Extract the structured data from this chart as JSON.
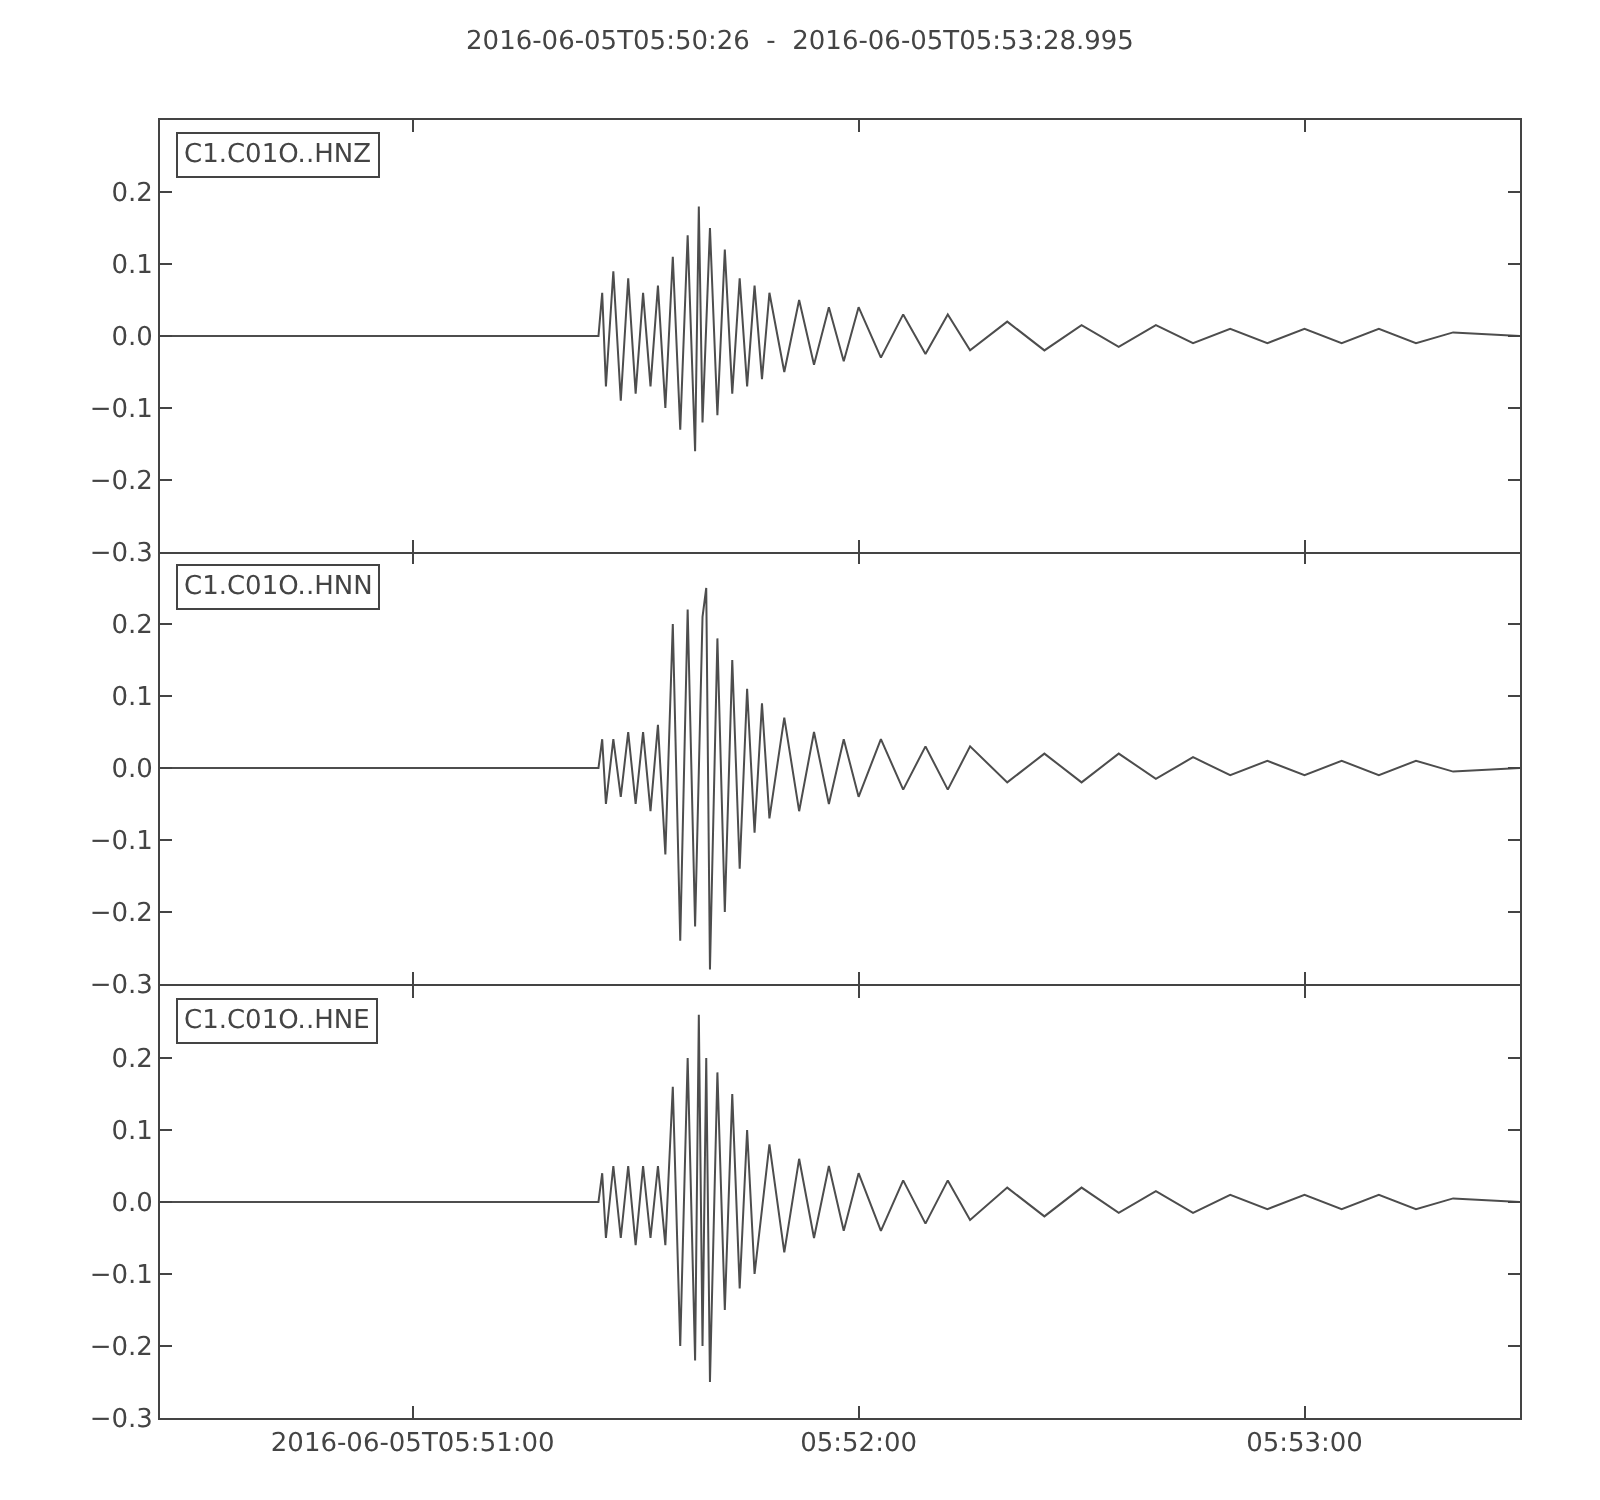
{
  "chart_data": [
    {
      "type": "line",
      "title": "2016-06-05T05:50:26  -  2016-06-05T05:53:28.995",
      "annotations": [
        "C1.C01O..HNZ"
      ],
      "grid": false,
      "marker": "none",
      "tick_labels": "y",
      "xlim": [
        "2016-06-05T05:50:26",
        "2016-06-05T05:53:28.995"
      ],
      "xticks": [
        {
          "value": "2016-06-05T05:51:00",
          "label": null
        },
        {
          "value": "2016-06-05T05:52:00",
          "label": null
        },
        {
          "value": "2016-06-05T05:53:00",
          "label": null
        }
      ],
      "ylim": [
        -0.3,
        0.3
      ],
      "yticks": [
        {
          "value": -0.3,
          "label": "−0.3"
        },
        {
          "value": -0.2,
          "label": "−0.2"
        },
        {
          "value": -0.1,
          "label": "−0.1"
        },
        {
          "value": 0,
          "label": "0.0"
        },
        {
          "value": 0.1,
          "label": "0.1"
        },
        {
          "value": 0.2,
          "label": "0.2"
        }
      ],
      "series": [
        {
          "color": "#4d4d4d",
          "x": [
            "2016-06-05T05:50:26",
            "2016-06-05T05:51:25",
            "2016-06-05T05:51:25.5",
            "2016-06-05T05:51:26",
            "2016-06-05T05:51:27",
            "2016-06-05T05:51:28",
            "2016-06-05T05:51:29",
            "2016-06-05T05:51:30",
            "2016-06-05T05:51:31",
            "2016-06-05T05:51:32",
            "2016-06-05T05:51:33",
            "2016-06-05T05:51:34",
            "2016-06-05T05:51:35",
            "2016-06-05T05:51:36",
            "2016-06-05T05:51:37",
            "2016-06-05T05:51:38",
            "2016-06-05T05:51:38.5",
            "2016-06-05T05:51:39",
            "2016-06-05T05:51:40",
            "2016-06-05T05:51:41",
            "2016-06-05T05:51:42",
            "2016-06-05T05:51:43",
            "2016-06-05T05:51:44",
            "2016-06-05T05:51:45",
            "2016-06-05T05:51:46",
            "2016-06-05T05:51:47",
            "2016-06-05T05:51:48",
            "2016-06-05T05:51:50",
            "2016-06-05T05:51:52",
            "2016-06-05T05:51:54",
            "2016-06-05T05:51:56",
            "2016-06-05T05:51:58",
            "2016-06-05T05:52:00",
            "2016-06-05T05:52:03",
            "2016-06-05T05:52:06",
            "2016-06-05T05:52:09",
            "2016-06-05T05:52:12",
            "2016-06-05T05:52:15",
            "2016-06-05T05:52:20",
            "2016-06-05T05:52:25",
            "2016-06-05T05:52:30",
            "2016-06-05T05:52:35",
            "2016-06-05T05:52:40",
            "2016-06-05T05:52:45",
            "2016-06-05T05:52:50",
            "2016-06-05T05:52:55",
            "2016-06-05T05:53:00",
            "2016-06-05T05:53:05",
            "2016-06-05T05:53:10",
            "2016-06-05T05:53:15",
            "2016-06-05T05:53:20",
            "2016-06-05T05:53:28.995"
          ],
          "values": [
            0.0,
            0.0,
            0.06,
            -0.07,
            0.09,
            -0.09,
            0.08,
            -0.08,
            0.06,
            -0.07,
            0.07,
            -0.1,
            0.11,
            -0.13,
            0.14,
            -0.16,
            0.18,
            -0.12,
            0.15,
            -0.11,
            0.12,
            -0.08,
            0.08,
            -0.07,
            0.07,
            -0.06,
            0.06,
            -0.05,
            0.05,
            -0.04,
            0.04,
            -0.035,
            0.04,
            -0.03,
            0.03,
            -0.025,
            0.03,
            -0.02,
            0.02,
            -0.02,
            0.015,
            -0.015,
            0.015,
            -0.01,
            0.01,
            -0.01,
            0.01,
            -0.01,
            0.01,
            -0.01,
            0.005,
            0.0
          ]
        }
      ]
    },
    {
      "type": "line",
      "annotations": [
        "C1.C01O..HNN"
      ],
      "grid": false,
      "marker": "none",
      "tick_labels": "y",
      "xlim": [
        "2016-06-05T05:50:26",
        "2016-06-05T05:53:28.995"
      ],
      "xticks": [
        {
          "value": "2016-06-05T05:51:00",
          "label": null
        },
        {
          "value": "2016-06-05T05:52:00",
          "label": null
        },
        {
          "value": "2016-06-05T05:53:00",
          "label": null
        }
      ],
      "ylim": [
        -0.3,
        0.3
      ],
      "yticks": [
        {
          "value": -0.3,
          "label": "−0.3"
        },
        {
          "value": -0.2,
          "label": "−0.2"
        },
        {
          "value": -0.1,
          "label": "−0.1"
        },
        {
          "value": 0,
          "label": "0.0"
        },
        {
          "value": 0.1,
          "label": "0.1"
        },
        {
          "value": 0.2,
          "label": "0.2"
        }
      ],
      "series": [
        {
          "color": "#4d4d4d",
          "x": [
            "2016-06-05T05:50:26",
            "2016-06-05T05:51:25",
            "2016-06-05T05:51:25.5",
            "2016-06-05T05:51:26",
            "2016-06-05T05:51:27",
            "2016-06-05T05:51:28",
            "2016-06-05T05:51:29",
            "2016-06-05T05:51:30",
            "2016-06-05T05:51:31",
            "2016-06-05T05:51:32",
            "2016-06-05T05:51:33",
            "2016-06-05T05:51:34",
            "2016-06-05T05:51:35",
            "2016-06-05T05:51:36",
            "2016-06-05T05:51:37",
            "2016-06-05T05:51:38",
            "2016-06-05T05:51:39",
            "2016-06-05T05:51:39.5",
            "2016-06-05T05:51:40",
            "2016-06-05T05:51:41",
            "2016-06-05T05:51:42",
            "2016-06-05T05:51:43",
            "2016-06-05T05:51:44",
            "2016-06-05T05:51:45",
            "2016-06-05T05:51:46",
            "2016-06-05T05:51:47",
            "2016-06-05T05:51:48",
            "2016-06-05T05:51:50",
            "2016-06-05T05:51:52",
            "2016-06-05T05:51:54",
            "2016-06-05T05:51:56",
            "2016-06-05T05:51:58",
            "2016-06-05T05:52:00",
            "2016-06-05T05:52:03",
            "2016-06-05T05:52:06",
            "2016-06-05T05:52:09",
            "2016-06-05T05:52:12",
            "2016-06-05T05:52:15",
            "2016-06-05T05:52:20",
            "2016-06-05T05:52:25",
            "2016-06-05T05:52:30",
            "2016-06-05T05:52:35",
            "2016-06-05T05:52:40",
            "2016-06-05T05:52:45",
            "2016-06-05T05:52:50",
            "2016-06-05T05:52:55",
            "2016-06-05T05:53:00",
            "2016-06-05T05:53:05",
            "2016-06-05T05:53:10",
            "2016-06-05T05:53:15",
            "2016-06-05T05:53:20",
            "2016-06-05T05:53:28.995"
          ],
          "values": [
            0.0,
            0.0,
            0.04,
            -0.05,
            0.04,
            -0.04,
            0.05,
            -0.05,
            0.05,
            -0.06,
            0.06,
            -0.12,
            0.2,
            -0.24,
            0.22,
            -0.22,
            0.21,
            0.25,
            -0.28,
            0.18,
            -0.2,
            0.15,
            -0.14,
            0.11,
            -0.09,
            0.09,
            -0.07,
            0.07,
            -0.06,
            0.05,
            -0.05,
            0.04,
            -0.04,
            0.04,
            -0.03,
            0.03,
            -0.03,
            0.03,
            -0.02,
            0.02,
            -0.02,
            0.02,
            -0.015,
            0.015,
            -0.01,
            0.01,
            -0.01,
            0.01,
            -0.01,
            0.01,
            -0.005,
            0.0
          ]
        }
      ]
    },
    {
      "type": "line",
      "annotations": [
        "C1.C01O..HNE"
      ],
      "grid": false,
      "marker": "none",
      "xlim": [
        "2016-06-05T05:50:26",
        "2016-06-05T05:53:28.995"
      ],
      "xticks": [
        {
          "value": "2016-06-05T05:51:00",
          "label": "2016-06-05T05:51:00"
        },
        {
          "value": "2016-06-05T05:52:00",
          "label": "05:52:00"
        },
        {
          "value": "2016-06-05T05:53:00",
          "label": "05:53:00"
        }
      ],
      "ylim": [
        -0.3,
        0.3
      ],
      "yticks": [
        {
          "value": -0.3,
          "label": "−0.3"
        },
        {
          "value": -0.2,
          "label": "−0.2"
        },
        {
          "value": -0.1,
          "label": "−0.1"
        },
        {
          "value": 0,
          "label": "0.0"
        },
        {
          "value": 0.1,
          "label": "0.1"
        },
        {
          "value": 0.2,
          "label": "0.2"
        }
      ],
      "series": [
        {
          "color": "#4d4d4d",
          "x": [
            "2016-06-05T05:50:26",
            "2016-06-05T05:51:25",
            "2016-06-05T05:51:25.5",
            "2016-06-05T05:51:26",
            "2016-06-05T05:51:27",
            "2016-06-05T05:51:28",
            "2016-06-05T05:51:29",
            "2016-06-05T05:51:30",
            "2016-06-05T05:51:31",
            "2016-06-05T05:51:32",
            "2016-06-05T05:51:33",
            "2016-06-05T05:51:34",
            "2016-06-05T05:51:35",
            "2016-06-05T05:51:36",
            "2016-06-05T05:51:37",
            "2016-06-05T05:51:38",
            "2016-06-05T05:51:38.5",
            "2016-06-05T05:51:39",
            "2016-06-05T05:51:39.5",
            "2016-06-05T05:51:40",
            "2016-06-05T05:51:41",
            "2016-06-05T05:51:42",
            "2016-06-05T05:51:43",
            "2016-06-05T05:51:44",
            "2016-06-05T05:51:45",
            "2016-06-05T05:51:46",
            "2016-06-05T05:51:48",
            "2016-06-05T05:51:50",
            "2016-06-05T05:51:52",
            "2016-06-05T05:51:54",
            "2016-06-05T05:51:56",
            "2016-06-05T05:51:58",
            "2016-06-05T05:52:00",
            "2016-06-05T05:52:03",
            "2016-06-05T05:52:06",
            "2016-06-05T05:52:09",
            "2016-06-05T05:52:12",
            "2016-06-05T05:52:15",
            "2016-06-05T05:52:20",
            "2016-06-05T05:52:25",
            "2016-06-05T05:52:30",
            "2016-06-05T05:52:35",
            "2016-06-05T05:52:40",
            "2016-06-05T05:52:45",
            "2016-06-05T05:52:50",
            "2016-06-05T05:52:55",
            "2016-06-05T05:53:00",
            "2016-06-05T05:53:05",
            "2016-06-05T05:53:10",
            "2016-06-05T05:53:15",
            "2016-06-05T05:53:20",
            "2016-06-05T05:53:28.995"
          ],
          "values": [
            0.0,
            0.0,
            0.04,
            -0.05,
            0.05,
            -0.05,
            0.05,
            -0.06,
            0.05,
            -0.05,
            0.05,
            -0.06,
            0.16,
            -0.2,
            0.2,
            -0.22,
            0.26,
            -0.2,
            0.2,
            -0.25,
            0.18,
            -0.15,
            0.15,
            -0.12,
            0.1,
            -0.1,
            0.08,
            -0.07,
            0.06,
            -0.05,
            0.05,
            -0.04,
            0.04,
            -0.04,
            0.03,
            -0.03,
            0.03,
            -0.025,
            0.02,
            -0.02,
            0.02,
            -0.015,
            0.015,
            -0.015,
            0.01,
            -0.01,
            0.01,
            -0.01,
            0.01,
            -0.01,
            0.005,
            0.0
          ]
        }
      ]
    }
  ]
}
